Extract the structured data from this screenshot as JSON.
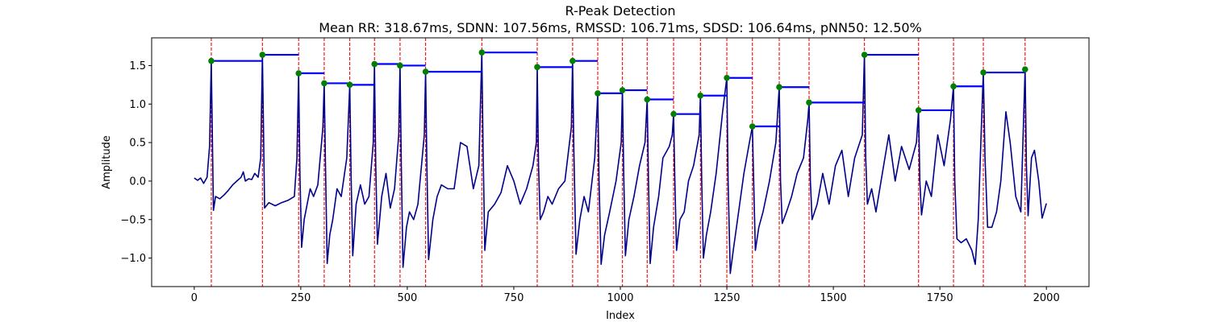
{
  "chart_data": {
    "type": "line",
    "title": "R-Peak Detection",
    "subtitle": "Mean RR: 318.67ms, SDNN: 107.56ms, RMSSD: 106.71ms, SDSD: 106.64ms, pNN50: 12.50%",
    "xlabel": "Index",
    "ylabel": "Amplitude",
    "xlim": [
      -100,
      2100
    ],
    "ylim": [
      -1.37,
      1.86
    ],
    "xticks": [
      0,
      250,
      500,
      750,
      1000,
      1250,
      1500,
      1750,
      2000
    ],
    "yticks": [
      -1.0,
      -0.5,
      0.0,
      0.5,
      1.0,
      1.5
    ],
    "xtick_labels": [
      "0",
      "250",
      "500",
      "750",
      "1000",
      "1250",
      "1500",
      "1750",
      "2000"
    ],
    "ytick_labels": [
      "−1.0",
      "−0.5",
      "0.0",
      "0.5",
      "1.0",
      "1.5"
    ],
    "grid": false,
    "colors": {
      "signal": "#00008b",
      "peak_line": "#ff0000",
      "peak_marker": "#008000",
      "rr_segment": "#0000ff"
    },
    "r_peaks": {
      "x": [
        40,
        160,
        245,
        305,
        365,
        423,
        483,
        543,
        675,
        805,
        888,
        947,
        1005,
        1063,
        1125,
        1188,
        1250,
        1310,
        1373,
        1443,
        1573,
        1700,
        1782,
        1852,
        1950
      ],
      "y": [
        1.56,
        1.64,
        1.4,
        1.27,
        1.25,
        1.52,
        1.5,
        1.42,
        1.67,
        1.48,
        1.56,
        1.14,
        1.18,
        1.06,
        0.87,
        1.11,
        1.34,
        0.71,
        1.22,
        1.02,
        1.64,
        0.92,
        1.23,
        1.41,
        1.45
      ]
    },
    "signal": {
      "anchors": [
        [
          0,
          0.04
        ],
        [
          8,
          0.01
        ],
        [
          15,
          0.04
        ],
        [
          22,
          -0.03
        ],
        [
          30,
          0.05
        ],
        [
          36,
          0.45
        ],
        [
          40,
          1.56
        ],
        [
          43,
          0.4
        ],
        [
          45,
          -0.38
        ],
        [
          50,
          -0.2
        ],
        [
          60,
          -0.23
        ],
        [
          70,
          -0.18
        ],
        [
          80,
          -0.12
        ],
        [
          90,
          -0.05
        ],
        [
          100,
          0.0
        ],
        [
          110,
          0.05
        ],
        [
          115,
          0.12
        ],
        [
          120,
          0.0
        ],
        [
          128,
          0.03
        ],
        [
          135,
          0.02
        ],
        [
          142,
          0.1
        ],
        [
          150,
          0.05
        ],
        [
          156,
          0.3
        ],
        [
          160,
          1.64
        ],
        [
          163,
          0.5
        ],
        [
          165,
          -0.35
        ],
        [
          175,
          -0.28
        ],
        [
          190,
          -0.32
        ],
        [
          205,
          -0.28
        ],
        [
          220,
          -0.25
        ],
        [
          235,
          -0.2
        ],
        [
          241,
          0.3
        ],
        [
          245,
          1.4
        ],
        [
          248,
          0.1
        ],
        [
          252,
          -0.86
        ],
        [
          258,
          -0.5
        ],
        [
          265,
          -0.3
        ],
        [
          272,
          -0.1
        ],
        [
          280,
          -0.2
        ],
        [
          290,
          -0.05
        ],
        [
          302,
          0.7
        ],
        [
          305,
          1.27
        ],
        [
          308,
          0.2
        ],
        [
          312,
          -1.07
        ],
        [
          318,
          -0.7
        ],
        [
          325,
          -0.5
        ],
        [
          335,
          -0.1
        ],
        [
          345,
          -0.2
        ],
        [
          358,
          0.3
        ],
        [
          365,
          1.25
        ],
        [
          368,
          0.1
        ],
        [
          372,
          -0.97
        ],
        [
          380,
          -0.3
        ],
        [
          390,
          -0.05
        ],
        [
          400,
          -0.3
        ],
        [
          410,
          -0.2
        ],
        [
          420,
          0.5
        ],
        [
          423,
          1.52
        ],
        [
          426,
          0.2
        ],
        [
          430,
          -0.82
        ],
        [
          440,
          -0.2
        ],
        [
          450,
          0.1
        ],
        [
          460,
          -0.35
        ],
        [
          470,
          -0.1
        ],
        [
          480,
          0.6
        ],
        [
          483,
          1.5
        ],
        [
          486,
          0.2
        ],
        [
          490,
          -1.12
        ],
        [
          498,
          -0.6
        ],
        [
          505,
          -0.4
        ],
        [
          515,
          -0.5
        ],
        [
          525,
          -0.3
        ],
        [
          540,
          0.6
        ],
        [
          543,
          1.42
        ],
        [
          546,
          0.2
        ],
        [
          550,
          -1.02
        ],
        [
          560,
          -0.5
        ],
        [
          570,
          -0.2
        ],
        [
          580,
          -0.05
        ],
        [
          595,
          -0.1
        ],
        [
          610,
          -0.1
        ],
        [
          625,
          0.5
        ],
        [
          640,
          0.45
        ],
        [
          655,
          -0.1
        ],
        [
          668,
          0.2
        ],
        [
          675,
          1.67
        ],
        [
          678,
          0.4
        ],
        [
          682,
          -0.9
        ],
        [
          690,
          -0.4
        ],
        [
          705,
          -0.3
        ],
        [
          720,
          -0.15
        ],
        [
          735,
          0.2
        ],
        [
          750,
          0.0
        ],
        [
          765,
          -0.3
        ],
        [
          780,
          -0.1
        ],
        [
          795,
          0.2
        ],
        [
          803,
          0.5
        ],
        [
          805,
          1.48
        ],
        [
          808,
          0.2
        ],
        [
          812,
          -0.5
        ],
        [
          820,
          -0.4
        ],
        [
          830,
          -0.2
        ],
        [
          840,
          -0.3
        ],
        [
          855,
          -0.1
        ],
        [
          870,
          0.0
        ],
        [
          885,
          0.7
        ],
        [
          888,
          1.56
        ],
        [
          891,
          0.4
        ],
        [
          896,
          -0.95
        ],
        [
          905,
          -0.5
        ],
        [
          915,
          -0.2
        ],
        [
          925,
          -0.4
        ],
        [
          940,
          0.3
        ],
        [
          947,
          1.14
        ],
        [
          950,
          0.0
        ],
        [
          955,
          -1.08
        ],
        [
          963,
          -0.7
        ],
        [
          975,
          -0.4
        ],
        [
          990,
          0.0
        ],
        [
          1002,
          0.5
        ],
        [
          1005,
          1.18
        ],
        [
          1008,
          0.1
        ],
        [
          1012,
          -0.97
        ],
        [
          1020,
          -0.5
        ],
        [
          1032,
          -0.2
        ],
        [
          1045,
          0.2
        ],
        [
          1058,
          0.5
        ],
        [
          1063,
          1.06
        ],
        [
          1066,
          0.0
        ],
        [
          1070,
          -1.07
        ],
        [
          1078,
          -0.6
        ],
        [
          1090,
          -0.2
        ],
        [
          1100,
          0.3
        ],
        [
          1115,
          0.45
        ],
        [
          1122,
          0.6
        ],
        [
          1125,
          0.87
        ],
        [
          1128,
          0.0
        ],
        [
          1132,
          -0.9
        ],
        [
          1140,
          -0.5
        ],
        [
          1150,
          -0.4
        ],
        [
          1160,
          0.0
        ],
        [
          1172,
          0.2
        ],
        [
          1185,
          0.6
        ],
        [
          1188,
          1.11
        ],
        [
          1191,
          0.0
        ],
        [
          1195,
          -1.0
        ],
        [
          1202,
          -0.7
        ],
        [
          1212,
          -0.4
        ],
        [
          1225,
          0.1
        ],
        [
          1240,
          0.9
        ],
        [
          1250,
          1.34
        ],
        [
          1253,
          0.0
        ],
        [
          1258,
          -1.2
        ],
        [
          1265,
          -0.9
        ],
        [
          1275,
          -0.5
        ],
        [
          1290,
          0.1
        ],
        [
          1303,
          0.5
        ],
        [
          1310,
          0.71
        ],
        [
          1313,
          0.0
        ],
        [
          1317,
          -0.9
        ],
        [
          1325,
          -0.6
        ],
        [
          1335,
          -0.4
        ],
        [
          1350,
          0.0
        ],
        [
          1365,
          0.5
        ],
        [
          1373,
          1.22
        ],
        [
          1376,
          0.0
        ],
        [
          1380,
          -0.55
        ],
        [
          1390,
          -0.4
        ],
        [
          1402,
          -0.2
        ],
        [
          1415,
          0.1
        ],
        [
          1430,
          0.3
        ],
        [
          1440,
          0.8
        ],
        [
          1443,
          1.02
        ],
        [
          1446,
          0.0
        ],
        [
          1450,
          -0.5
        ],
        [
          1462,
          -0.3
        ],
        [
          1475,
          0.1
        ],
        [
          1490,
          -0.3
        ],
        [
          1505,
          0.2
        ],
        [
          1520,
          0.4
        ],
        [
          1535,
          -0.2
        ],
        [
          1550,
          0.3
        ],
        [
          1568,
          0.6
        ],
        [
          1573,
          1.64
        ],
        [
          1576,
          0.3
        ],
        [
          1580,
          -0.3
        ],
        [
          1590,
          -0.1
        ],
        [
          1600,
          -0.4
        ],
        [
          1615,
          0.1
        ],
        [
          1630,
          0.6
        ],
        [
          1645,
          0.0
        ],
        [
          1660,
          0.45
        ],
        [
          1678,
          0.15
        ],
        [
          1695,
          0.5
        ],
        [
          1700,
          0.92
        ],
        [
          1703,
          0.0
        ],
        [
          1707,
          -0.44
        ],
        [
          1718,
          0.0
        ],
        [
          1730,
          -0.2
        ],
        [
          1745,
          0.6
        ],
        [
          1760,
          0.2
        ],
        [
          1775,
          0.8
        ],
        [
          1782,
          1.23
        ],
        [
          1785,
          0.0
        ],
        [
          1790,
          -0.75
        ],
        [
          1800,
          -0.8
        ],
        [
          1812,
          -0.75
        ],
        [
          1825,
          -0.9
        ],
        [
          1833,
          -1.08
        ],
        [
          1840,
          -0.5
        ],
        [
          1848,
          0.8
        ],
        [
          1852,
          1.41
        ],
        [
          1856,
          0.3
        ],
        [
          1862,
          -0.6
        ],
        [
          1872,
          -0.6
        ],
        [
          1883,
          -0.4
        ],
        [
          1893,
          0.0
        ],
        [
          1905,
          0.9
        ],
        [
          1915,
          0.5
        ],
        [
          1928,
          -0.2
        ],
        [
          1940,
          -0.4
        ],
        [
          1947,
          0.9
        ],
        [
          1950,
          1.45
        ],
        [
          1953,
          0.2
        ],
        [
          1957,
          -0.45
        ],
        [
          1965,
          0.3
        ],
        [
          1972,
          0.4
        ],
        [
          1982,
          0.0
        ],
        [
          1990,
          -0.48
        ],
        [
          2000,
          -0.29
        ]
      ]
    }
  }
}
